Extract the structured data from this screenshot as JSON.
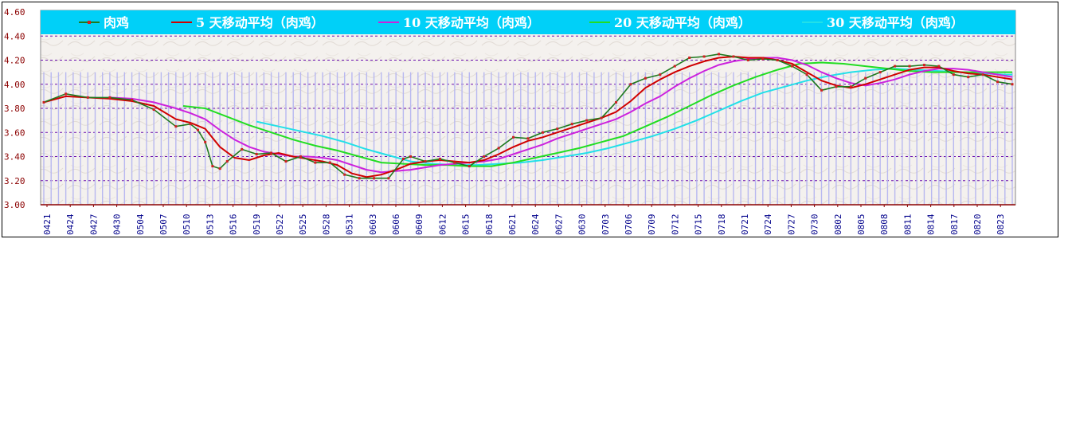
{
  "chart_data": {
    "type": "line",
    "title": "",
    "xlabel": "",
    "ylabel": "",
    "ylim": [
      3.0,
      4.6
    ],
    "yticks": [
      "3.00",
      "3.20",
      "3.40",
      "3.60",
      "3.80",
      "4.00",
      "4.20",
      "4.40",
      "4.60"
    ],
    "grid": true,
    "legend_position": "top",
    "x_tick_labels": [
      "0421",
      "0424",
      "0427",
      "0430",
      "0504",
      "0507",
      "0510",
      "0513",
      "0516",
      "0519",
      "0522",
      "0525",
      "0528",
      "0531",
      "0603",
      "0606",
      "0609",
      "0612",
      "0615",
      "0618",
      "0621",
      "0624",
      "0627",
      "0630",
      "0703",
      "0706",
      "0709",
      "0712",
      "0715",
      "0718",
      "0721",
      "0724",
      "0727",
      "0730",
      "0802",
      "0805",
      "0808",
      "0811",
      "0814",
      "0817",
      "0820",
      "0823"
    ],
    "colors": {
      "legend_bg": "#00d0f8",
      "price": "#1f7a1f",
      "price_marker": "#d02020",
      "ma5": "#d00000",
      "ma10": "#cc22dd",
      "ma20": "#22dd22",
      "ma30": "#22e0e8",
      "gridline": "#6a0dad",
      "volume_bars": "#b8b8f0"
    },
    "series": [
      {
        "name": "肉鸡",
        "key": "price",
        "points": [
          [
            0,
            3.85
          ],
          [
            3,
            3.92
          ],
          [
            6,
            3.89
          ],
          [
            9,
            3.89
          ],
          [
            12,
            3.87
          ],
          [
            15,
            3.79
          ],
          [
            18,
            3.65
          ],
          [
            20,
            3.67
          ],
          [
            21,
            3.62
          ],
          [
            22,
            3.52
          ],
          [
            23,
            3.32
          ],
          [
            24,
            3.3
          ],
          [
            25,
            3.36
          ],
          [
            27,
            3.46
          ],
          [
            29,
            3.42
          ],
          [
            31,
            3.43
          ],
          [
            33,
            3.36
          ],
          [
            35,
            3.4
          ],
          [
            37,
            3.35
          ],
          [
            39,
            3.35
          ],
          [
            41,
            3.25
          ],
          [
            43,
            3.22
          ],
          [
            45,
            3.22
          ],
          [
            47,
            3.22
          ],
          [
            49,
            3.38
          ],
          [
            50,
            3.4
          ],
          [
            52,
            3.36
          ],
          [
            54,
            3.38
          ],
          [
            56,
            3.35
          ],
          [
            58,
            3.32
          ],
          [
            60,
            3.4
          ],
          [
            62,
            3.47
          ],
          [
            64,
            3.56
          ],
          [
            66,
            3.55
          ],
          [
            68,
            3.6
          ],
          [
            70,
            3.63
          ],
          [
            72,
            3.67
          ],
          [
            74,
            3.7
          ],
          [
            76,
            3.72
          ],
          [
            78,
            3.85
          ],
          [
            80,
            4.0
          ],
          [
            82,
            4.05
          ],
          [
            84,
            4.08
          ],
          [
            86,
            4.15
          ],
          [
            88,
            4.22
          ],
          [
            90,
            4.23
          ],
          [
            92,
            4.25
          ],
          [
            94,
            4.23
          ],
          [
            96,
            4.2
          ],
          [
            98,
            4.21
          ],
          [
            100,
            4.2
          ],
          [
            102,
            4.15
          ],
          [
            104,
            4.08
          ],
          [
            106,
            3.95
          ],
          [
            108,
            3.98
          ],
          [
            110,
            3.98
          ],
          [
            112,
            4.05
          ],
          [
            114,
            4.1
          ],
          [
            116,
            4.15
          ],
          [
            118,
            4.15
          ],
          [
            120,
            4.16
          ],
          [
            122,
            4.15
          ],
          [
            124,
            4.08
          ],
          [
            126,
            4.06
          ],
          [
            128,
            4.08
          ],
          [
            130,
            4.02
          ],
          [
            132,
            4.0
          ]
        ]
      },
      {
        "name": "5 天移动平均（肉鸡）",
        "key": "ma5",
        "points": [
          [
            0,
            3.85
          ],
          [
            3,
            3.9
          ],
          [
            6,
            3.89
          ],
          [
            9,
            3.88
          ],
          [
            12,
            3.86
          ],
          [
            15,
            3.82
          ],
          [
            18,
            3.71
          ],
          [
            20,
            3.68
          ],
          [
            22,
            3.63
          ],
          [
            24,
            3.48
          ],
          [
            26,
            3.39
          ],
          [
            28,
            3.37
          ],
          [
            30,
            3.41
          ],
          [
            32,
            3.43
          ],
          [
            34,
            3.4
          ],
          [
            36,
            3.38
          ],
          [
            38,
            3.36
          ],
          [
            40,
            3.33
          ],
          [
            42,
            3.26
          ],
          [
            44,
            3.23
          ],
          [
            46,
            3.25
          ],
          [
            48,
            3.29
          ],
          [
            50,
            3.34
          ],
          [
            52,
            3.36
          ],
          [
            54,
            3.37
          ],
          [
            56,
            3.36
          ],
          [
            58,
            3.35
          ],
          [
            60,
            3.37
          ],
          [
            62,
            3.42
          ],
          [
            64,
            3.48
          ],
          [
            66,
            3.53
          ],
          [
            68,
            3.56
          ],
          [
            70,
            3.6
          ],
          [
            72,
            3.64
          ],
          [
            74,
            3.68
          ],
          [
            76,
            3.72
          ],
          [
            78,
            3.77
          ],
          [
            80,
            3.86
          ],
          [
            82,
            3.97
          ],
          [
            84,
            4.04
          ],
          [
            86,
            4.1
          ],
          [
            88,
            4.15
          ],
          [
            90,
            4.19
          ],
          [
            92,
            4.22
          ],
          [
            94,
            4.23
          ],
          [
            96,
            4.22
          ],
          [
            98,
            4.22
          ],
          [
            100,
            4.2
          ],
          [
            102,
            4.17
          ],
          [
            104,
            4.1
          ],
          [
            106,
            4.03
          ],
          [
            108,
            3.99
          ],
          [
            110,
            3.97
          ],
          [
            112,
            4.0
          ],
          [
            114,
            4.04
          ],
          [
            116,
            4.08
          ],
          [
            118,
            4.12
          ],
          [
            120,
            4.14
          ],
          [
            122,
            4.14
          ],
          [
            124,
            4.11
          ],
          [
            126,
            4.09
          ],
          [
            128,
            4.08
          ],
          [
            130,
            4.06
          ],
          [
            132,
            4.04
          ]
        ]
      },
      {
        "name": "10 天移动平均（肉鸡）",
        "key": "ma10",
        "points": [
          [
            9,
            3.89
          ],
          [
            12,
            3.88
          ],
          [
            15,
            3.85
          ],
          [
            18,
            3.8
          ],
          [
            20,
            3.76
          ],
          [
            22,
            3.71
          ],
          [
            24,
            3.62
          ],
          [
            26,
            3.54
          ],
          [
            28,
            3.48
          ],
          [
            30,
            3.44
          ],
          [
            32,
            3.42
          ],
          [
            34,
            3.4
          ],
          [
            36,
            3.4
          ],
          [
            38,
            3.39
          ],
          [
            40,
            3.37
          ],
          [
            42,
            3.33
          ],
          [
            44,
            3.29
          ],
          [
            46,
            3.27
          ],
          [
            48,
            3.28
          ],
          [
            50,
            3.29
          ],
          [
            52,
            3.31
          ],
          [
            54,
            3.33
          ],
          [
            56,
            3.34
          ],
          [
            58,
            3.35
          ],
          [
            60,
            3.36
          ],
          [
            62,
            3.38
          ],
          [
            64,
            3.42
          ],
          [
            66,
            3.46
          ],
          [
            68,
            3.5
          ],
          [
            70,
            3.55
          ],
          [
            72,
            3.59
          ],
          [
            74,
            3.63
          ],
          [
            76,
            3.67
          ],
          [
            78,
            3.71
          ],
          [
            80,
            3.77
          ],
          [
            82,
            3.84
          ],
          [
            84,
            3.9
          ],
          [
            86,
            3.98
          ],
          [
            88,
            4.05
          ],
          [
            90,
            4.11
          ],
          [
            92,
            4.16
          ],
          [
            94,
            4.19
          ],
          [
            96,
            4.21
          ],
          [
            98,
            4.22
          ],
          [
            100,
            4.22
          ],
          [
            102,
            4.2
          ],
          [
            104,
            4.16
          ],
          [
            106,
            4.1
          ],
          [
            108,
            4.05
          ],
          [
            110,
            4.01
          ],
          [
            112,
            3.99
          ],
          [
            114,
            4.01
          ],
          [
            116,
            4.04
          ],
          [
            118,
            4.08
          ],
          [
            120,
            4.11
          ],
          [
            122,
            4.13
          ],
          [
            124,
            4.13
          ],
          [
            126,
            4.12
          ],
          [
            128,
            4.1
          ],
          [
            130,
            4.08
          ],
          [
            132,
            4.06
          ]
        ]
      },
      {
        "name": "20 天移动平均（肉鸡）",
        "key": "ma20",
        "points": [
          [
            19,
            3.82
          ],
          [
            22,
            3.8
          ],
          [
            25,
            3.73
          ],
          [
            28,
            3.66
          ],
          [
            31,
            3.6
          ],
          [
            34,
            3.54
          ],
          [
            37,
            3.49
          ],
          [
            40,
            3.45
          ],
          [
            43,
            3.4
          ],
          [
            46,
            3.35
          ],
          [
            49,
            3.34
          ],
          [
            52,
            3.33
          ],
          [
            55,
            3.33
          ],
          [
            58,
            3.32
          ],
          [
            61,
            3.32
          ],
          [
            64,
            3.35
          ],
          [
            67,
            3.39
          ],
          [
            70,
            3.43
          ],
          [
            73,
            3.47
          ],
          [
            76,
            3.52
          ],
          [
            79,
            3.57
          ],
          [
            82,
            3.65
          ],
          [
            85,
            3.73
          ],
          [
            88,
            3.82
          ],
          [
            91,
            3.91
          ],
          [
            94,
            3.99
          ],
          [
            97,
            4.06
          ],
          [
            100,
            4.12
          ],
          [
            103,
            4.17
          ],
          [
            106,
            4.18
          ],
          [
            109,
            4.17
          ],
          [
            112,
            4.15
          ],
          [
            115,
            4.13
          ],
          [
            118,
            4.11
          ],
          [
            121,
            4.1
          ],
          [
            124,
            4.1
          ],
          [
            127,
            4.1
          ],
          [
            130,
            4.1
          ],
          [
            132,
            4.1
          ]
        ]
      },
      {
        "name": "30 天移动平均（肉鸡）",
        "key": "ma30",
        "points": [
          [
            29,
            3.69
          ],
          [
            32,
            3.65
          ],
          [
            35,
            3.61
          ],
          [
            38,
            3.57
          ],
          [
            41,
            3.52
          ],
          [
            44,
            3.46
          ],
          [
            47,
            3.41
          ],
          [
            50,
            3.36
          ],
          [
            53,
            3.34
          ],
          [
            56,
            3.33
          ],
          [
            59,
            3.33
          ],
          [
            62,
            3.34
          ],
          [
            65,
            3.35
          ],
          [
            68,
            3.37
          ],
          [
            71,
            3.4
          ],
          [
            74,
            3.43
          ],
          [
            77,
            3.47
          ],
          [
            80,
            3.52
          ],
          [
            83,
            3.57
          ],
          [
            86,
            3.63
          ],
          [
            89,
            3.7
          ],
          [
            92,
            3.78
          ],
          [
            95,
            3.86
          ],
          [
            98,
            3.93
          ],
          [
            101,
            3.98
          ],
          [
            104,
            4.03
          ],
          [
            107,
            4.07
          ],
          [
            110,
            4.1
          ],
          [
            113,
            4.12
          ],
          [
            116,
            4.13
          ],
          [
            119,
            4.12
          ],
          [
            122,
            4.11
          ],
          [
            125,
            4.1
          ],
          [
            128,
            4.09
          ],
          [
            131,
            4.08
          ],
          [
            132,
            4.08
          ]
        ]
      }
    ]
  }
}
